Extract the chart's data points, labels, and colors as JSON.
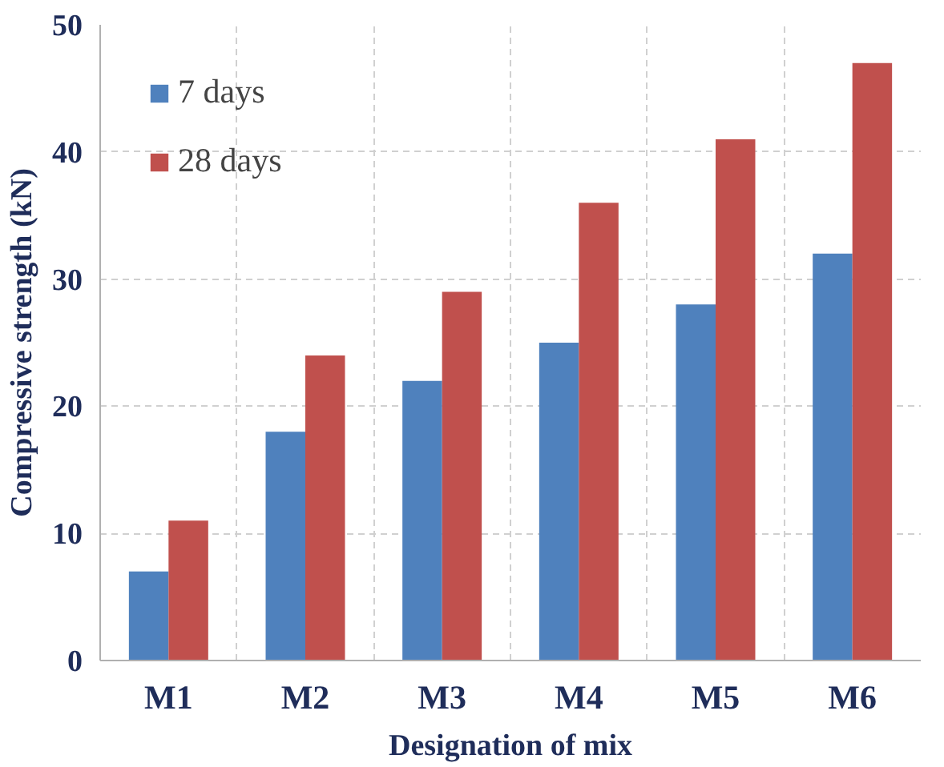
{
  "chart_data": {
    "type": "bar",
    "xlabel": "Designation of mix",
    "ylabel": "Compressive strength (kN)",
    "categories": [
      "M1",
      "M2",
      "M3",
      "M4",
      "M5",
      "M6"
    ],
    "series": [
      {
        "name": "7 days",
        "color": "#4f81bd",
        "values": [
          7,
          18,
          22,
          25,
          28,
          32
        ]
      },
      {
        "name": "28 days",
        "color": "#c0504d",
        "values": [
          11,
          24,
          29,
          36,
          41,
          47
        ]
      }
    ],
    "ylim": [
      0,
      50
    ],
    "yticks": [
      0,
      10,
      20,
      30,
      40,
      50
    ],
    "grid": true,
    "legend": "top left"
  }
}
